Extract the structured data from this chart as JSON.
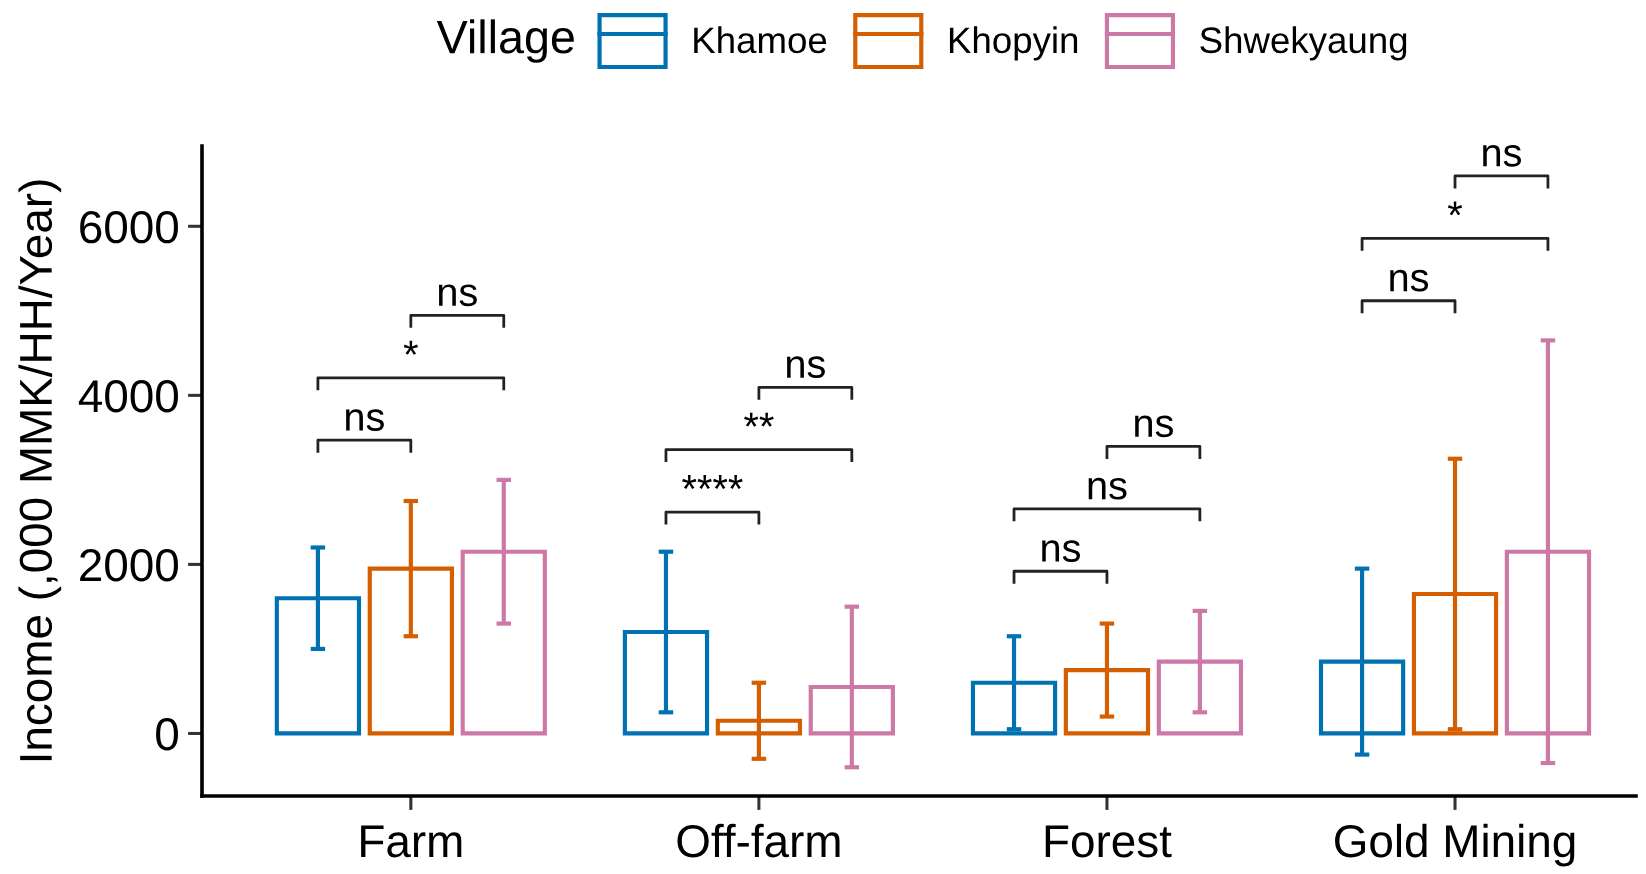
{
  "chart_data": {
    "type": "bar",
    "ylabel": "Income (,000 MMK/HH/Year)",
    "legend_title": "Village",
    "categories": [
      "Farm",
      "Off-farm",
      "Forest",
      "Gold Mining"
    ],
    "series": [
      {
        "name": "Khamoe",
        "color": "#0072b2",
        "values": [
          1600,
          1200,
          600,
          850
        ],
        "errors": [
          600,
          950,
          550,
          1100
        ]
      },
      {
        "name": "Khopyin",
        "color": "#d55e00",
        "values": [
          1950,
          150,
          750,
          1650
        ],
        "errors": [
          800,
          450,
          550,
          1600
        ]
      },
      {
        "name": "Shwekyaung",
        "color": "#cc79a7",
        "values": [
          2150,
          550,
          850,
          2150
        ],
        "errors": [
          850,
          950,
          600,
          2500
        ]
      }
    ],
    "ylim": [
      -740,
      6950
    ],
    "yticks": [
      0,
      2000,
      4000,
      6000
    ],
    "grid": false,
    "legend": "top",
    "annotations": [
      "ns",
      "*",
      "ns",
      "****",
      "**",
      "ns",
      "ns",
      "ns",
      "ns",
      "ns",
      "*",
      "ns"
    ]
  }
}
